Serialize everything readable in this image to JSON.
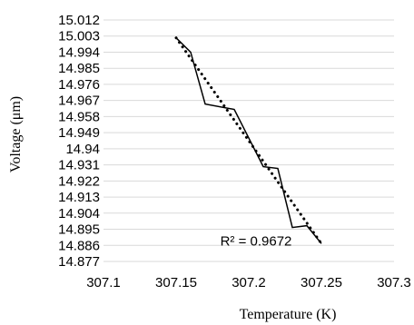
{
  "chart_data": {
    "type": "line",
    "xlabel": "Temperature (K)",
    "ylabel": "Voltage (μm)",
    "xlim": [
      307.1,
      307.3
    ],
    "ylim": [
      14.877,
      15.012
    ],
    "x_ticks": [
      "307.1",
      "307.15",
      "307.2",
      "307.25",
      "307.3"
    ],
    "y_ticks": [
      "15.012",
      "15.003",
      "14.994",
      "14.985",
      "14.976",
      "14.967",
      "14.958",
      "14.949",
      "14.94",
      "14.931",
      "14.922",
      "14.913",
      "14.904",
      "14.895",
      "14.886",
      "14.877"
    ],
    "grid": "horizontal",
    "series": [
      {
        "style": "solid",
        "color": "#000000",
        "x": [
          307.15,
          307.16,
          307.17,
          307.19,
          307.21,
          307.22,
          307.23,
          307.24,
          307.25
        ],
        "y": [
          15.002,
          14.994,
          14.965,
          14.962,
          14.93,
          14.929,
          14.896,
          14.897,
          14.887
        ]
      },
      {
        "style": "dotted",
        "color": "#000000",
        "x": [
          307.15,
          307.25
        ],
        "y": [
          15.002,
          14.887
        ]
      }
    ],
    "annotation": {
      "text": "R² = 0.9672",
      "x": 307.2,
      "y": 14.887
    }
  }
}
